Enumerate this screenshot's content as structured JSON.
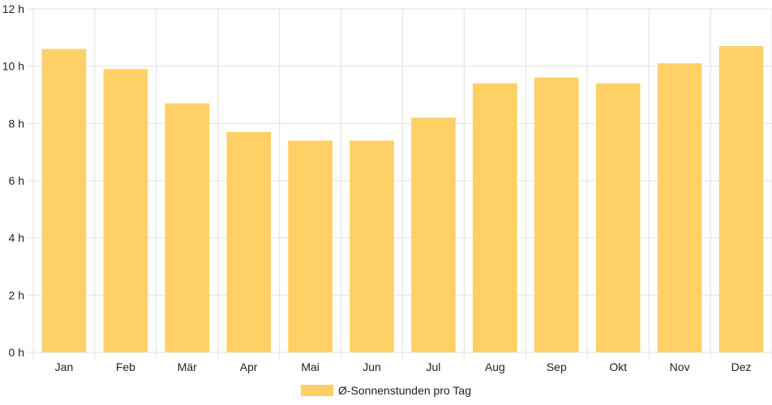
{
  "chart_data": {
    "type": "bar",
    "categories": [
      "Jan",
      "Feb",
      "Mär",
      "Apr",
      "Mai",
      "Jun",
      "Jul",
      "Aug",
      "Sep",
      "Okt",
      "Nov",
      "Dez"
    ],
    "series": [
      {
        "name": "Ø-Sonnenstunden pro Tag",
        "values": [
          10.6,
          9.9,
          8.7,
          7.7,
          7.4,
          7.4,
          8.2,
          9.4,
          9.6,
          9.4,
          10.1,
          10.7
        ],
        "color": "#fed066"
      }
    ],
    "yticks": [
      "0 h",
      "2 h",
      "4 h",
      "6 h",
      "8 h",
      "10 h",
      "12 h"
    ],
    "ylim": [
      0,
      12
    ],
    "grid": true,
    "legend_position": "bottom"
  }
}
